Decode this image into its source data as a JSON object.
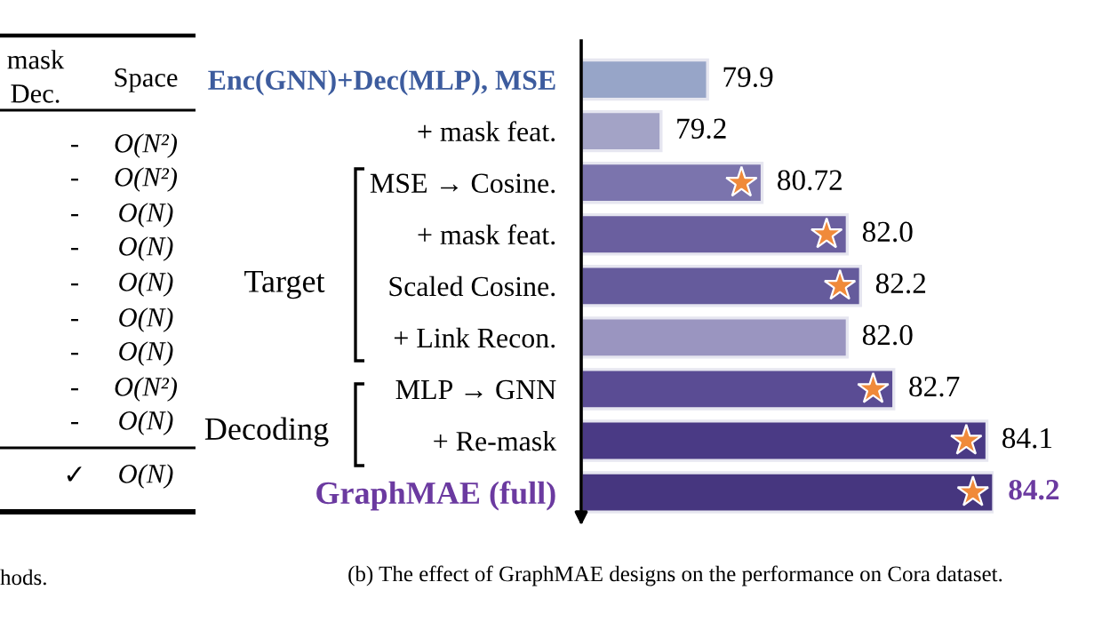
{
  "chart_data": [
    {
      "type": "other",
      "annotations": [
        "mask",
        "Dec.",
        "Space",
        "-",
        "O(N²)",
        "-",
        "O(N²)",
        "-",
        "O(N)",
        "-",
        "O(N)",
        "-",
        "O(N)",
        "-",
        "O(N)",
        "-",
        "O(N)",
        "-",
        "O(N²)",
        "-",
        "O(N)",
        "✓",
        "O(N)",
        "hods."
      ]
    },
    {
      "type": "bar",
      "orientation": "horizontal",
      "categories": [
        "Enc(GNN)+Dec(MLP), MSE",
        "+ mask feat.",
        "MSE → Cosine.",
        "+ mask feat.",
        "Scaled Cosine.",
        "+ Link Recon.",
        "MLP → GNN",
        "+ Re-mask",
        "GraphMAE (full)"
      ],
      "values": [
        79.9,
        79.2,
        80.72,
        82.0,
        82.2,
        82.0,
        82.7,
        84.1,
        84.2
      ],
      "colors": [
        "#97a5c8",
        "#a3a3c6",
        "#7b74ad",
        "#6a5f9f",
        "#655b9c",
        "#9a95c0",
        "#5a4c94",
        "#4a3a85",
        "#46367f"
      ],
      "value_labels": [
        "79.9",
        "79.2",
        "80.72",
        "82.0",
        "82.2",
        "82.0",
        "82.7",
        "84.1",
        "84.2"
      ],
      "xlim": [
        78,
        84.2
      ],
      "tick_labels": "y",
      "annotations": [
        "Target",
        "Decoding",
        "(b) The effect of GraphMAE designs on the performance on Cora dataset."
      ]
    }
  ]
}
